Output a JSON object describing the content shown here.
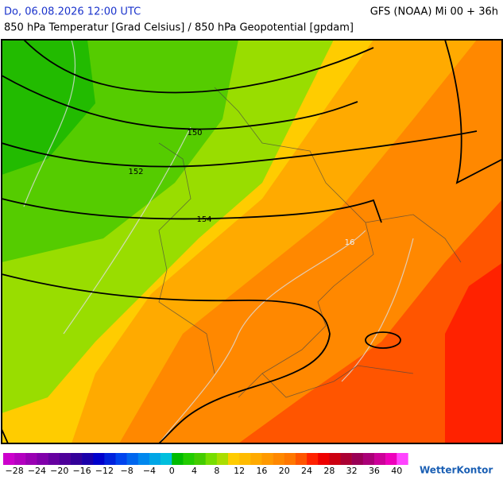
{
  "header": {
    "date": "Do, 06.08.2026 12:00 UTC",
    "model": "GFS (NOAA) Mi 00 + 36h",
    "subtitle": "850 hPa Temperatur [Grad Celsius] / 850 hPa Geopotential [gpdam]"
  },
  "map": {
    "contour_labels": [
      "150",
      "152",
      "154"
    ],
    "isotherm_labels": [
      "16"
    ]
  },
  "legend": {
    "labels": [
      "−28",
      "−24",
      "−20",
      "−16",
      "−12",
      "−8",
      "−4",
      "0",
      "4",
      "8",
      "12",
      "16",
      "20",
      "24",
      "28",
      "32",
      "36",
      "40"
    ],
    "colors": [
      "#cc00cc",
      "#b300c0",
      "#9900b3",
      "#8000aa",
      "#6600a0",
      "#4d0099",
      "#330099",
      "#1a00aa",
      "#0000cc",
      "#0022dd",
      "#0044ee",
      "#0066ee",
      "#0088ee",
      "#00a6e6",
      "#00bfdd",
      "#00bb00",
      "#22cc00",
      "#44cc00",
      "#77dd00",
      "#aadd00",
      "#ffcc00",
      "#ffbb00",
      "#ffaa00",
      "#ff9900",
      "#ff8800",
      "#ff7700",
      "#ff5500",
      "#ff2200",
      "#ee0000",
      "#cc0011",
      "#aa0033",
      "#990055",
      "#aa0077",
      "#cc0099",
      "#ee00bb",
      "#ff44ff"
    ]
  },
  "logo": "WetterKontor"
}
